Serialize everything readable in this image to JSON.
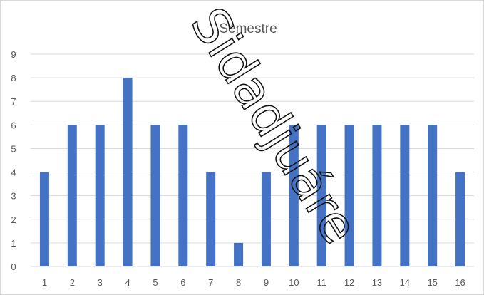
{
  "chart_data": {
    "type": "bar",
    "title": "Semestre",
    "categories": [
      "1",
      "2",
      "3",
      "4",
      "5",
      "6",
      "7",
      "8",
      "9",
      "10",
      "11",
      "12",
      "13",
      "14",
      "15",
      "16"
    ],
    "values": [
      4,
      6,
      6,
      8,
      6,
      6,
      4,
      1,
      4,
      6,
      6,
      6,
      6,
      6,
      6,
      4
    ],
    "ylim": [
      0,
      9
    ],
    "yticks": [
      0,
      1,
      2,
      3,
      4,
      5,
      6,
      7,
      8,
      9
    ],
    "grid": true,
    "legend": "none",
    "bar_color": "#4472C4",
    "grid_color": "#D9D9D9"
  },
  "watermark": {
    "text": "Sidadjuáre",
    "style": "outlined diagonal",
    "color": "#111111"
  }
}
